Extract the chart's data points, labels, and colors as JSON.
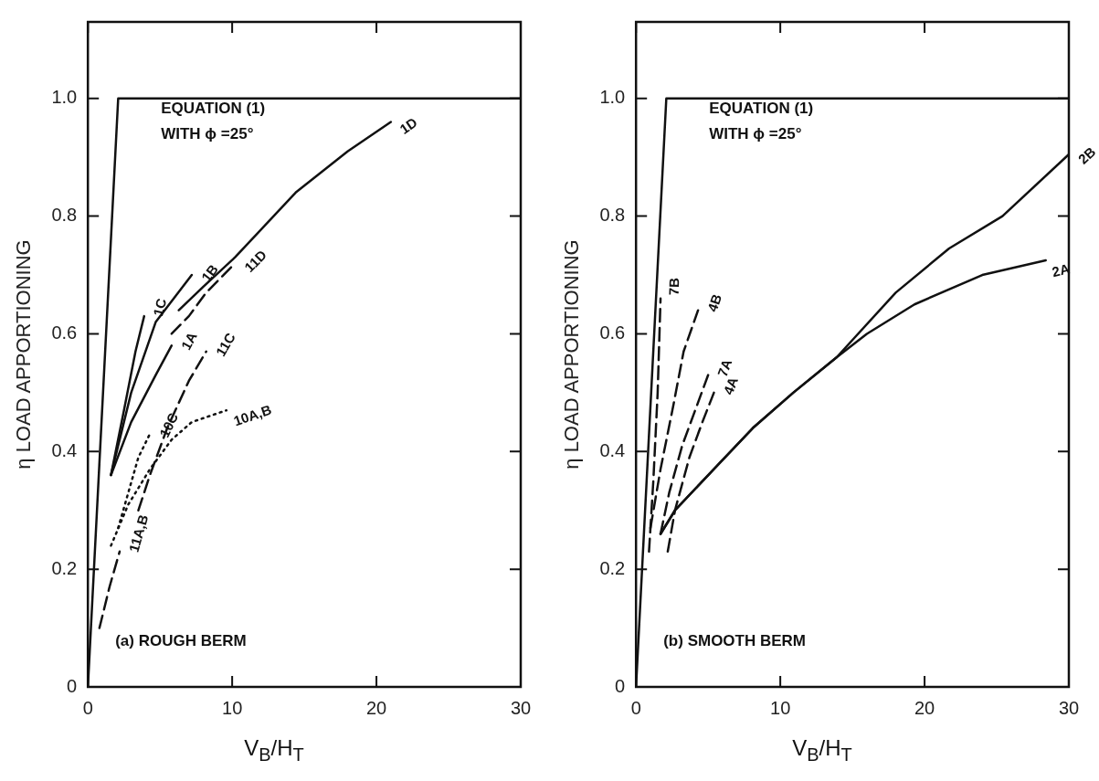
{
  "chart_data": [
    {
      "type": "line",
      "xlabel": "V$_{B}$/H$_{T}$",
      "ylabel": "η LOAD APPORTIONING",
      "xlim": [
        0,
        30
      ],
      "ylim": [
        0,
        1.13
      ],
      "xticks": [
        0,
        10,
        20,
        30
      ],
      "yticks": [
        0,
        {
          "value": 0.2,
          "label": "0.2"
        },
        {
          "value": 0.4,
          "label": "0.4"
        },
        {
          "value": 0.6,
          "label": "0.6"
        },
        {
          "value": 0.8,
          "label": "0.8"
        },
        {
          "value": 1,
          "label": "1.0"
        }
      ],
      "grid": false,
      "legend": false,
      "marker": "none",
      "annotations": [
        "EQUATION (1)",
        "WITH ϕ =25°",
        "(a) ROUGH BERM"
      ],
      "series": [
        {
          "color": "#111111",
          "line_style": "solid",
          "x": [
            0,
            2.1,
            30
          ],
          "values": [
            0,
            1,
            1
          ]
        },
        {
          "name": "1C",
          "color": "#111111",
          "line_style": "solid",
          "x": [
            1.6,
            2.5,
            3.3,
            3.9
          ],
          "values": [
            0.36,
            0.47,
            0.57,
            0.63
          ]
        },
        {
          "name": "1B",
          "color": "#111111",
          "line_style": "solid",
          "x": [
            1.6,
            3,
            4.7,
            7.2
          ],
          "values": [
            0.36,
            0.5,
            0.62,
            0.7
          ]
        },
        {
          "name": "1A",
          "color": "#111111",
          "line_style": "solid",
          "x": [
            1.6,
            3,
            4.7,
            5.8
          ],
          "values": [
            0.36,
            0.45,
            0.53,
            0.58
          ]
        },
        {
          "name": "1D",
          "color": "#111111",
          "line_style": "solid",
          "x": [
            6.3,
            8,
            10.2,
            14.4,
            18,
            21
          ],
          "values": [
            0.64,
            0.68,
            0.73,
            0.84,
            0.91,
            0.96
          ]
        },
        {
          "name": "11D",
          "color": "#111111",
          "line_style": "dashed",
          "x": [
            5.8,
            7,
            8.2,
            10.2
          ],
          "values": [
            0.6,
            0.63,
            0.67,
            0.72
          ]
        },
        {
          "name": "11C",
          "color": "#111111",
          "line_style": "dashed",
          "x": [
            3.5,
            4.3,
            5.5,
            7,
            8.2
          ],
          "values": [
            0.3,
            0.36,
            0.44,
            0.52,
            0.57
          ]
        },
        {
          "name": "11A,B",
          "color": "#111111",
          "line_style": "dashed",
          "x": [
            0.8,
            1.5,
            2.2
          ],
          "values": [
            0.1,
            0.17,
            0.23
          ]
        },
        {
          "name": "10C",
          "color": "#111111",
          "line_style": "dotted",
          "x": [
            2.1,
            2.8,
            3.5,
            4.3
          ],
          "values": [
            0.27,
            0.33,
            0.39,
            0.43
          ]
        },
        {
          "name": "10A,B",
          "color": "#111111",
          "line_style": "dotted",
          "x": [
            1.6,
            2.8,
            4.3,
            5.8,
            7.2,
            9.6
          ],
          "values": [
            0.24,
            0.31,
            0.37,
            0.42,
            0.45,
            0.47
          ]
        }
      ]
    },
    {
      "type": "line",
      "xlabel": "V$_{B}$/H$_{T}$",
      "ylabel": "η LOAD APPORTIONING",
      "xlim": [
        0,
        30
      ],
      "ylim": [
        0,
        1.13
      ],
      "xticks": [
        0,
        10,
        20,
        30
      ],
      "yticks": [
        0,
        {
          "value": 0.2,
          "label": "0.2"
        },
        {
          "value": 0.4,
          "label": "0.4"
        },
        {
          "value": 0.6,
          "label": "0.6"
        },
        {
          "value": 0.8,
          "label": "0.8"
        },
        {
          "value": 1,
          "label": "1.0"
        }
      ],
      "grid": false,
      "legend": false,
      "marker": "none",
      "annotations": [
        "EQUATION (1)",
        "WITH ϕ =25°",
        "(b) SMOOTH BERM"
      ],
      "series": [
        {
          "color": "#111111",
          "line_style": "solid",
          "x": [
            0,
            2.1,
            30
          ],
          "values": [
            0,
            1,
            1
          ]
        },
        {
          "name": "2B",
          "color": "#111111",
          "line_style": "solid",
          "x": [
            1.7,
            2.7,
            5.2,
            8.1,
            10.9,
            13.9,
            18,
            21.7,
            25.4,
            30
          ],
          "values": [
            0.26,
            0.3,
            0.365,
            0.44,
            0.5,
            0.56,
            0.67,
            0.745,
            0.8,
            0.905
          ]
        },
        {
          "name": "2A",
          "color": "#111111",
          "line_style": "solid",
          "x": [
            1.7,
            2.7,
            5.2,
            8.1,
            10.9,
            13.9,
            16,
            19.3,
            24,
            28.4
          ],
          "values": [
            0.26,
            0.3,
            0.365,
            0.44,
            0.5,
            0.56,
            0.6,
            0.65,
            0.7,
            0.725
          ]
        },
        {
          "name": "7B",
          "color": "#111111",
          "line_style": "dashed",
          "x": [
            0.9,
            1.2,
            1.5,
            1.7
          ],
          "values": [
            0.23,
            0.35,
            0.5,
            0.66
          ]
        },
        {
          "name": "4B",
          "color": "#111111",
          "line_style": "dashed",
          "x": [
            1,
            1.7,
            2.6,
            3.3,
            4.3
          ],
          "values": [
            0.27,
            0.37,
            0.48,
            0.57,
            0.64
          ]
        },
        {
          "name": "7A",
          "color": "#111111",
          "line_style": "dashed",
          "x": [
            1.7,
            2.3,
            3.2,
            4.1,
            5
          ],
          "values": [
            0.26,
            0.33,
            0.41,
            0.47,
            0.53
          ]
        },
        {
          "name": "4A",
          "color": "#111111",
          "line_style": "dashed",
          "x": [
            2.2,
            2.7,
            3.7,
            4.6,
            5.4
          ],
          "values": [
            0.23,
            0.3,
            0.39,
            0.45,
            0.5
          ]
        }
      ]
    }
  ]
}
